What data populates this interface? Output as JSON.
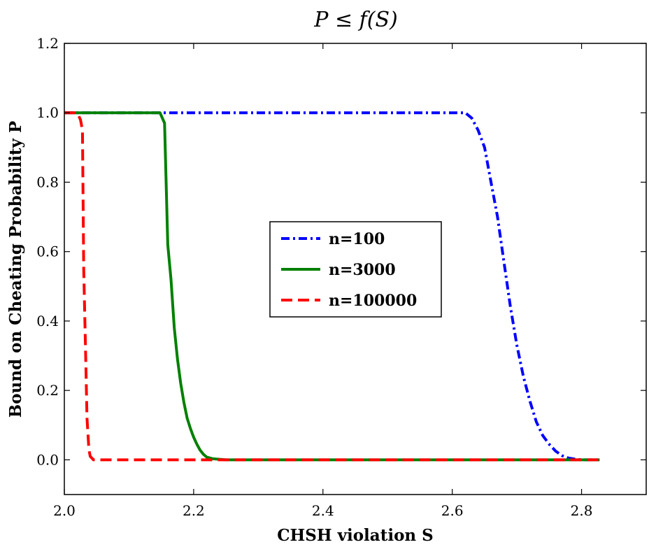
{
  "chart_data": {
    "type": "line",
    "title": "P ≤ f(S)",
    "xlabel": "CHSH violation S",
    "ylabel": "Bound on Cheating Probability P",
    "xlim": [
      2.0,
      2.9
    ],
    "ylim": [
      -0.1,
      1.2
    ],
    "xticks": [
      "2.0",
      "2.2",
      "2.4",
      "2.6",
      "2.8"
    ],
    "xtick_values": [
      2.0,
      2.2,
      2.4,
      2.6,
      2.8
    ],
    "yticks": [
      "0.0",
      "0.2",
      "0.4",
      "0.6",
      "0.8",
      "1.0",
      "1.2"
    ],
    "ytick_values": [
      0.0,
      0.2,
      0.4,
      0.6,
      0.8,
      1.0,
      1.2
    ],
    "grid": false,
    "legend_position": "center",
    "series": [
      {
        "name": "n=100",
        "color": "#0000ff",
        "style": "dashdot",
        "x": [
          2.0,
          2.1,
          2.2,
          2.3,
          2.4,
          2.5,
          2.6,
          2.62,
          2.63,
          2.64,
          2.65,
          2.66,
          2.67,
          2.68,
          2.69,
          2.7,
          2.71,
          2.72,
          2.73,
          2.74,
          2.75,
          2.76,
          2.77,
          2.78,
          2.79,
          2.8,
          2.81,
          2.828
        ],
        "y": [
          1.0,
          1.0,
          1.0,
          1.0,
          1.0,
          1.0,
          1.0,
          1.0,
          0.985,
          0.95,
          0.9,
          0.8,
          0.7,
          0.57,
          0.44,
          0.33,
          0.24,
          0.17,
          0.11,
          0.07,
          0.045,
          0.025,
          0.012,
          0.005,
          0.002,
          0.0,
          0.0,
          0.0
        ]
      },
      {
        "name": "n=3000",
        "color": "#008000",
        "style": "solid",
        "x": [
          2.0,
          2.1,
          2.148,
          2.155,
          2.16,
          2.165,
          2.17,
          2.175,
          2.18,
          2.185,
          2.19,
          2.195,
          2.2,
          2.205,
          2.21,
          2.215,
          2.22,
          2.23,
          2.25,
          2.4,
          2.6,
          2.828
        ],
        "y": [
          1.0,
          1.0,
          1.0,
          0.97,
          0.62,
          0.52,
          0.38,
          0.29,
          0.22,
          0.165,
          0.12,
          0.09,
          0.065,
          0.045,
          0.028,
          0.016,
          0.008,
          0.003,
          0.0,
          0.0,
          0.0,
          0.0
        ],
        "_note": ""
      },
      {
        "name": "n=100000",
        "color": "#ff0000",
        "style": "dashed",
        "x": [
          2.0,
          2.01,
          2.02,
          2.025,
          2.028,
          2.03,
          2.033,
          2.035,
          2.038,
          2.04,
          2.045,
          2.06,
          2.2,
          2.4,
          2.6,
          2.828
        ],
        "y": [
          1.0,
          1.0,
          1.0,
          0.98,
          0.95,
          0.55,
          0.3,
          0.12,
          0.03,
          0.01,
          0.0,
          0.0,
          0.0,
          0.0,
          0.0,
          0.0
        ]
      }
    ]
  }
}
